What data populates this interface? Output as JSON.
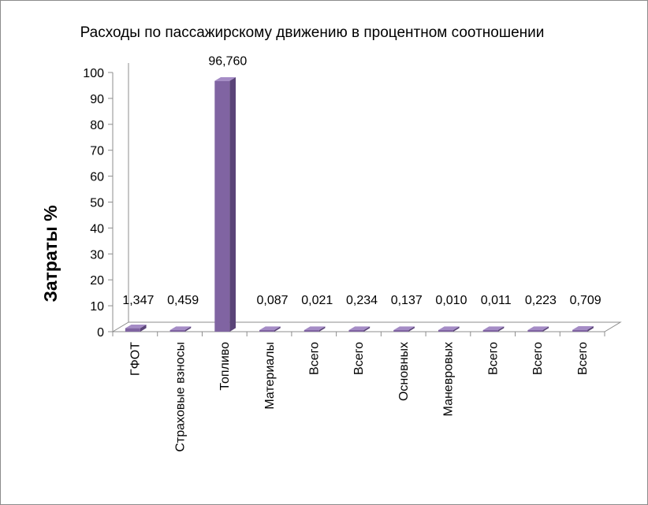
{
  "chart_data": {
    "type": "bar",
    "title": "Расходы по  пассажирскому движению в процентном соотношении",
    "xlabel": "",
    "ylabel": "Затраты %",
    "ylim": [
      0,
      100
    ],
    "yticks": [
      0,
      10,
      20,
      30,
      40,
      50,
      60,
      70,
      80,
      90,
      100
    ],
    "grid": false,
    "legend": "none",
    "style": "3d-column",
    "categories": [
      "ГФОТ",
      "Страховые взносы",
      "Топливо",
      "Материалы",
      "Всего",
      "Всего",
      "Основных",
      "Маневровых",
      "Всего",
      "Всего",
      "Всего"
    ],
    "values": [
      1.347,
      0.459,
      96.76,
      0.087,
      0.021,
      0.234,
      0.137,
      0.01,
      0.011,
      0.223,
      0.709
    ],
    "data_labels": [
      "1,347",
      "0,459",
      "96,760",
      "0,087",
      "0,021",
      "0,234",
      "0,137",
      "0,010",
      "0,011",
      "0,223",
      "0,709"
    ],
    "colors": {
      "front": "#8064a2",
      "top": "#a58cc6",
      "side": "#5a4478",
      "floor": "#ffffff",
      "axis": "#8c8c8c"
    }
  }
}
